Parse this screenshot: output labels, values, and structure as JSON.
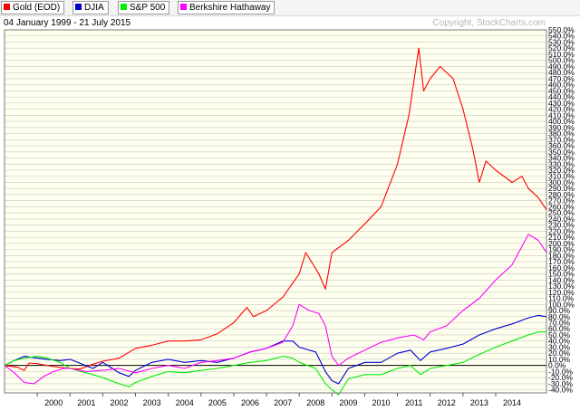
{
  "header": {
    "date_range": "04 January 1999 - 21 July 2015",
    "copyright": "Copyright, StockCharts.com"
  },
  "legend": [
    {
      "label": "Gold (EOD)",
      "color": "#ff0000"
    },
    {
      "label": "DJIA",
      "color": "#0000cc"
    },
    {
      "label": "S&P 500",
      "color": "#00ee00"
    },
    {
      "label": "Berkshire Hathaway",
      "color": "#ff00ff"
    }
  ],
  "chart_data": {
    "type": "line",
    "title": "",
    "xlabel": "",
    "ylabel": "",
    "x_unit": "year",
    "xlim": [
      1999.0,
      2015.55
    ],
    "ylim": [
      -45,
      550
    ],
    "y_tick_step": 10,
    "y_tick_suffix": "%",
    "x_ticks": [
      "2000",
      "2001",
      "2002",
      "2003",
      "2004",
      "2005",
      "2006",
      "2007",
      "2008",
      "2009",
      "2010",
      "2011",
      "2012",
      "2013",
      "2014"
    ],
    "grid": true,
    "zero_line": true,
    "series": [
      {
        "name": "Gold (EOD)",
        "color": "#ff0000",
        "x": [
          1999.0,
          1999.4,
          1999.6,
          1999.75,
          2000.0,
          2000.5,
          2001.0,
          2001.3,
          2001.7,
          2002.0,
          2002.5,
          2003.0,
          2003.5,
          2004.0,
          2004.5,
          2005.0,
          2005.5,
          2006.0,
          2006.4,
          2006.6,
          2007.0,
          2007.5,
          2008.0,
          2008.2,
          2008.6,
          2008.8,
          2009.0,
          2009.5,
          2010.0,
          2010.5,
          2011.0,
          2011.35,
          2011.65,
          2011.8,
          2012.0,
          2012.3,
          2012.7,
          2013.0,
          2013.3,
          2013.5,
          2013.7,
          2014.0,
          2014.5,
          2014.8,
          2015.0,
          2015.3,
          2015.55
        ],
        "y": [
          0,
          -3,
          -8,
          4,
          3,
          -2,
          -5,
          -6,
          2,
          7,
          12,
          28,
          33,
          40,
          40,
          42,
          52,
          70,
          95,
          80,
          90,
          112,
          150,
          185,
          150,
          125,
          185,
          205,
          232,
          260,
          330,
          410,
          520,
          450,
          470,
          490,
          470,
          420,
          355,
          300,
          335,
          320,
          300,
          310,
          290,
          275,
          255
        ]
      },
      {
        "name": "DJIA",
        "color": "#0000cc",
        "x": [
          1999.0,
          1999.3,
          1999.6,
          2000.0,
          2000.3,
          2000.7,
          2001.0,
          2001.7,
          2002.0,
          2002.5,
          2002.8,
          2003.0,
          2003.5,
          2004.0,
          2004.5,
          2005.0,
          2005.5,
          2006.0,
          2006.5,
          2007.0,
          2007.5,
          2007.8,
          2008.0,
          2008.5,
          2008.8,
          2009.0,
          2009.2,
          2009.5,
          2010.0,
          2010.5,
          2011.0,
          2011.4,
          2011.7,
          2012.0,
          2012.5,
          2013.0,
          2013.5,
          2014.0,
          2014.5,
          2015.0,
          2015.3,
          2015.55
        ],
        "y": [
          0,
          8,
          15,
          12,
          10,
          8,
          10,
          -5,
          5,
          -12,
          -18,
          -8,
          5,
          10,
          5,
          8,
          5,
          12,
          22,
          28,
          40,
          40,
          30,
          22,
          -10,
          -25,
          -30,
          -5,
          5,
          5,
          20,
          25,
          8,
          22,
          28,
          35,
          50,
          60,
          68,
          78,
          82,
          80
        ]
      },
      {
        "name": "S&P 500",
        "color": "#00ee00",
        "x": [
          1999.0,
          1999.3,
          1999.6,
          2000.0,
          2000.3,
          2000.7,
          2001.0,
          2001.7,
          2002.0,
          2002.5,
          2002.8,
          2003.0,
          2003.5,
          2004.0,
          2004.5,
          2005.0,
          2005.5,
          2006.0,
          2006.5,
          2007.0,
          2007.5,
          2007.8,
          2008.0,
          2008.5,
          2008.8,
          2009.0,
          2009.2,
          2009.5,
          2010.0,
          2010.5,
          2011.0,
          2011.4,
          2011.7,
          2012.0,
          2012.5,
          2013.0,
          2013.5,
          2014.0,
          2014.5,
          2015.0,
          2015.3,
          2015.55
        ],
        "y": [
          0,
          8,
          12,
          15,
          12,
          5,
          -5,
          -15,
          -20,
          -30,
          -35,
          -28,
          -18,
          -10,
          -12,
          -8,
          -5,
          0,
          5,
          8,
          15,
          12,
          5,
          -5,
          -30,
          -40,
          -48,
          -22,
          -15,
          -15,
          -5,
          0,
          -15,
          -5,
          0,
          5,
          18,
          30,
          40,
          50,
          55,
          55
        ]
      },
      {
        "name": "Berkshire Hathaway",
        "color": "#ff00ff",
        "x": [
          1999.0,
          1999.3,
          1999.6,
          1999.9,
          2000.2,
          2000.5,
          2000.8,
          2001.0,
          2001.5,
          2002.0,
          2002.5,
          2003.0,
          2003.5,
          2004.0,
          2004.5,
          2005.0,
          2005.5,
          2006.0,
          2006.5,
          2007.0,
          2007.5,
          2007.8,
          2008.0,
          2008.3,
          2008.6,
          2008.8,
          2009.0,
          2009.2,
          2009.5,
          2010.0,
          2010.5,
          2011.0,
          2011.5,
          2011.8,
          2012.0,
          2012.5,
          2013.0,
          2013.5,
          2014.0,
          2014.5,
          2015.0,
          2015.3,
          2015.55
        ],
        "y": [
          0,
          -12,
          -28,
          -30,
          -18,
          -10,
          -5,
          -5,
          -10,
          -8,
          -5,
          -12,
          -5,
          0,
          -5,
          5,
          8,
          12,
          22,
          28,
          38,
          65,
          100,
          90,
          85,
          65,
          15,
          0,
          12,
          25,
          38,
          45,
          50,
          42,
          55,
          65,
          90,
          110,
          140,
          165,
          215,
          205,
          185
        ]
      }
    ]
  }
}
